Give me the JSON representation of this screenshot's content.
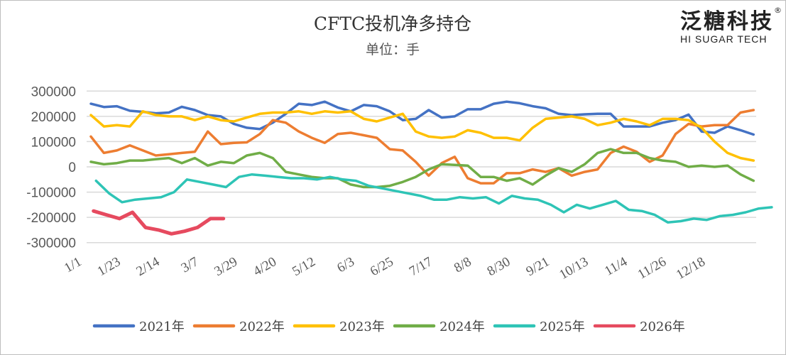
{
  "logo": {
    "name": "泛糖科技",
    "sub": "HI SUGAR TECH",
    "mark": "®"
  },
  "chart_data": {
    "type": "line",
    "title": "CFTC投机净多持仓",
    "subtitle": "单位：手",
    "ylim": [
      -300000,
      300000
    ],
    "yticks": [
      "300000",
      "200000",
      "100000",
      "0",
      "-100000",
      "-200000",
      "-300000"
    ],
    "ytick_values": [
      300000,
      200000,
      100000,
      0,
      -100000,
      -200000,
      -300000
    ],
    "xticks": [
      "1/1",
      "1/23",
      "2/14",
      "3/7",
      "3/29",
      "4/20",
      "5/12",
      "6/3",
      "6/25",
      "7/17",
      "8/8",
      "8/30",
      "9/21",
      "10/13",
      "11/4",
      "11/26",
      "12/18"
    ],
    "x_frequency": "weekly",
    "grid": true,
    "legend": "bottom",
    "series": [
      {
        "name": "2021年",
        "color": "#4472C4",
        "start_week": 0,
        "values": [
          250000,
          237000,
          240000,
          222000,
          218000,
          212000,
          215000,
          238000,
          225000,
          205000,
          200000,
          170000,
          155000,
          150000,
          175000,
          210000,
          250000,
          245000,
          258000,
          235000,
          220000,
          245000,
          240000,
          220000,
          185000,
          190000,
          225000,
          195000,
          200000,
          228000,
          228000,
          250000,
          258000,
          252000,
          240000,
          232000,
          210000,
          205000,
          208000,
          210000,
          210000,
          160000,
          160000,
          160000,
          175000,
          185000,
          207000,
          140000,
          135000,
          160000,
          145000,
          128000
        ]
      },
      {
        "name": "2022年",
        "color": "#ED7D31",
        "start_week": 0,
        "values": [
          120000,
          55000,
          65000,
          85000,
          65000,
          45000,
          50000,
          55000,
          60000,
          140000,
          90000,
          95000,
          97000,
          130000,
          185000,
          175000,
          140000,
          115000,
          95000,
          130000,
          135000,
          125000,
          115000,
          70000,
          65000,
          20000,
          -35000,
          15000,
          40000,
          -45000,
          -65000,
          -65000,
          -25000,
          -25000,
          -10000,
          -20000,
          -5000,
          -35000,
          -20000,
          -10000,
          55000,
          80000,
          60000,
          20000,
          45000,
          130000,
          170000,
          160000,
          165000,
          165000,
          215000,
          225000
        ]
      },
      {
        "name": "2023年",
        "color": "#FFC000",
        "start_week": 0,
        "values": [
          205000,
          160000,
          165000,
          160000,
          220000,
          205000,
          200000,
          200000,
          185000,
          200000,
          185000,
          180000,
          195000,
          210000,
          215000,
          215000,
          220000,
          210000,
          220000,
          215000,
          220000,
          190000,
          180000,
          195000,
          210000,
          140000,
          120000,
          115000,
          120000,
          145000,
          135000,
          115000,
          115000,
          105000,
          155000,
          190000,
          195000,
          200000,
          190000,
          165000,
          175000,
          190000,
          180000,
          165000,
          190000,
          190000,
          185000,
          155000,
          100000,
          55000,
          35000,
          25000
        ]
      },
      {
        "name": "2024年",
        "color": "#70AD47",
        "start_week": 0,
        "values": [
          20000,
          10000,
          15000,
          25000,
          25000,
          30000,
          35000,
          15000,
          35000,
          5000,
          20000,
          15000,
          45000,
          55000,
          35000,
          -20000,
          -30000,
          -40000,
          -45000,
          -45000,
          -70000,
          -80000,
          -80000,
          -75000,
          -60000,
          -40000,
          -10000,
          10000,
          8000,
          5000,
          -40000,
          -40000,
          -55000,
          -45000,
          -70000,
          -35000,
          -5000,
          -20000,
          10000,
          55000,
          70000,
          55000,
          55000,
          35000,
          25000,
          20000,
          0,
          5000,
          0,
          5000,
          -30000,
          -55000
        ]
      },
      {
        "name": "2025年",
        "color": "#2EC4B6",
        "start_week": 0.4,
        "values": [
          -55000,
          -105000,
          -140000,
          -130000,
          -125000,
          -120000,
          -100000,
          -50000,
          -60000,
          -70000,
          -80000,
          -40000,
          -30000,
          -35000,
          -40000,
          -45000,
          -45000,
          -50000,
          -40000,
          -50000,
          -55000,
          -75000,
          -85000,
          -95000,
          -105000,
          -115000,
          -130000,
          -130000,
          -120000,
          -125000,
          -120000,
          -145000,
          -115000,
          -125000,
          -130000,
          -150000,
          -180000,
          -150000,
          -165000,
          -150000,
          -135000,
          -170000,
          -175000,
          -190000,
          -220000,
          -215000,
          -205000,
          -210000,
          -195000,
          -190000,
          -180000,
          -165000,
          -160000
        ]
      },
      {
        "name": "2026年",
        "color": "#E64A5F",
        "start_week": 0.2,
        "values": [
          -175000,
          -190000,
          -205000,
          -180000,
          -240000,
          -250000,
          -265000,
          -255000,
          -240000,
          -205000,
          -205000
        ]
      }
    ]
  }
}
